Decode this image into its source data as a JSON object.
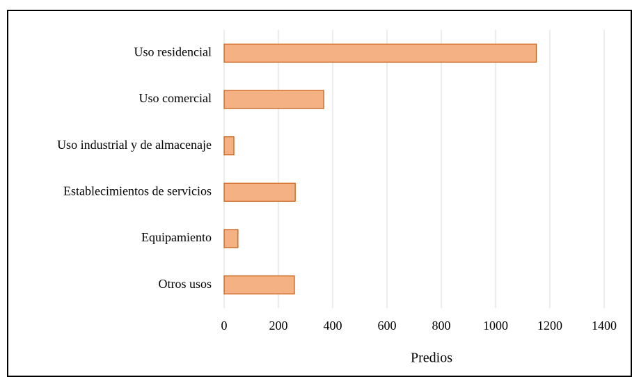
{
  "chart_data": {
    "type": "bar",
    "orientation": "horizontal",
    "categories": [
      "Uso residencial",
      "Uso comercial",
      "Uso industrial y de almacenaje",
      "Establecimientos de servicios",
      "Equipamiento",
      "Otros usos"
    ],
    "values": [
      1150,
      367,
      36,
      262,
      51,
      259
    ],
    "color": "#f4b183",
    "edge_color": "#c55a11",
    "xlabel": "Predios",
    "xlim": [
      0,
      1400
    ],
    "xticks": [
      0,
      200,
      400,
      600,
      800,
      1000,
      1200,
      1400
    ],
    "grid": true
  }
}
